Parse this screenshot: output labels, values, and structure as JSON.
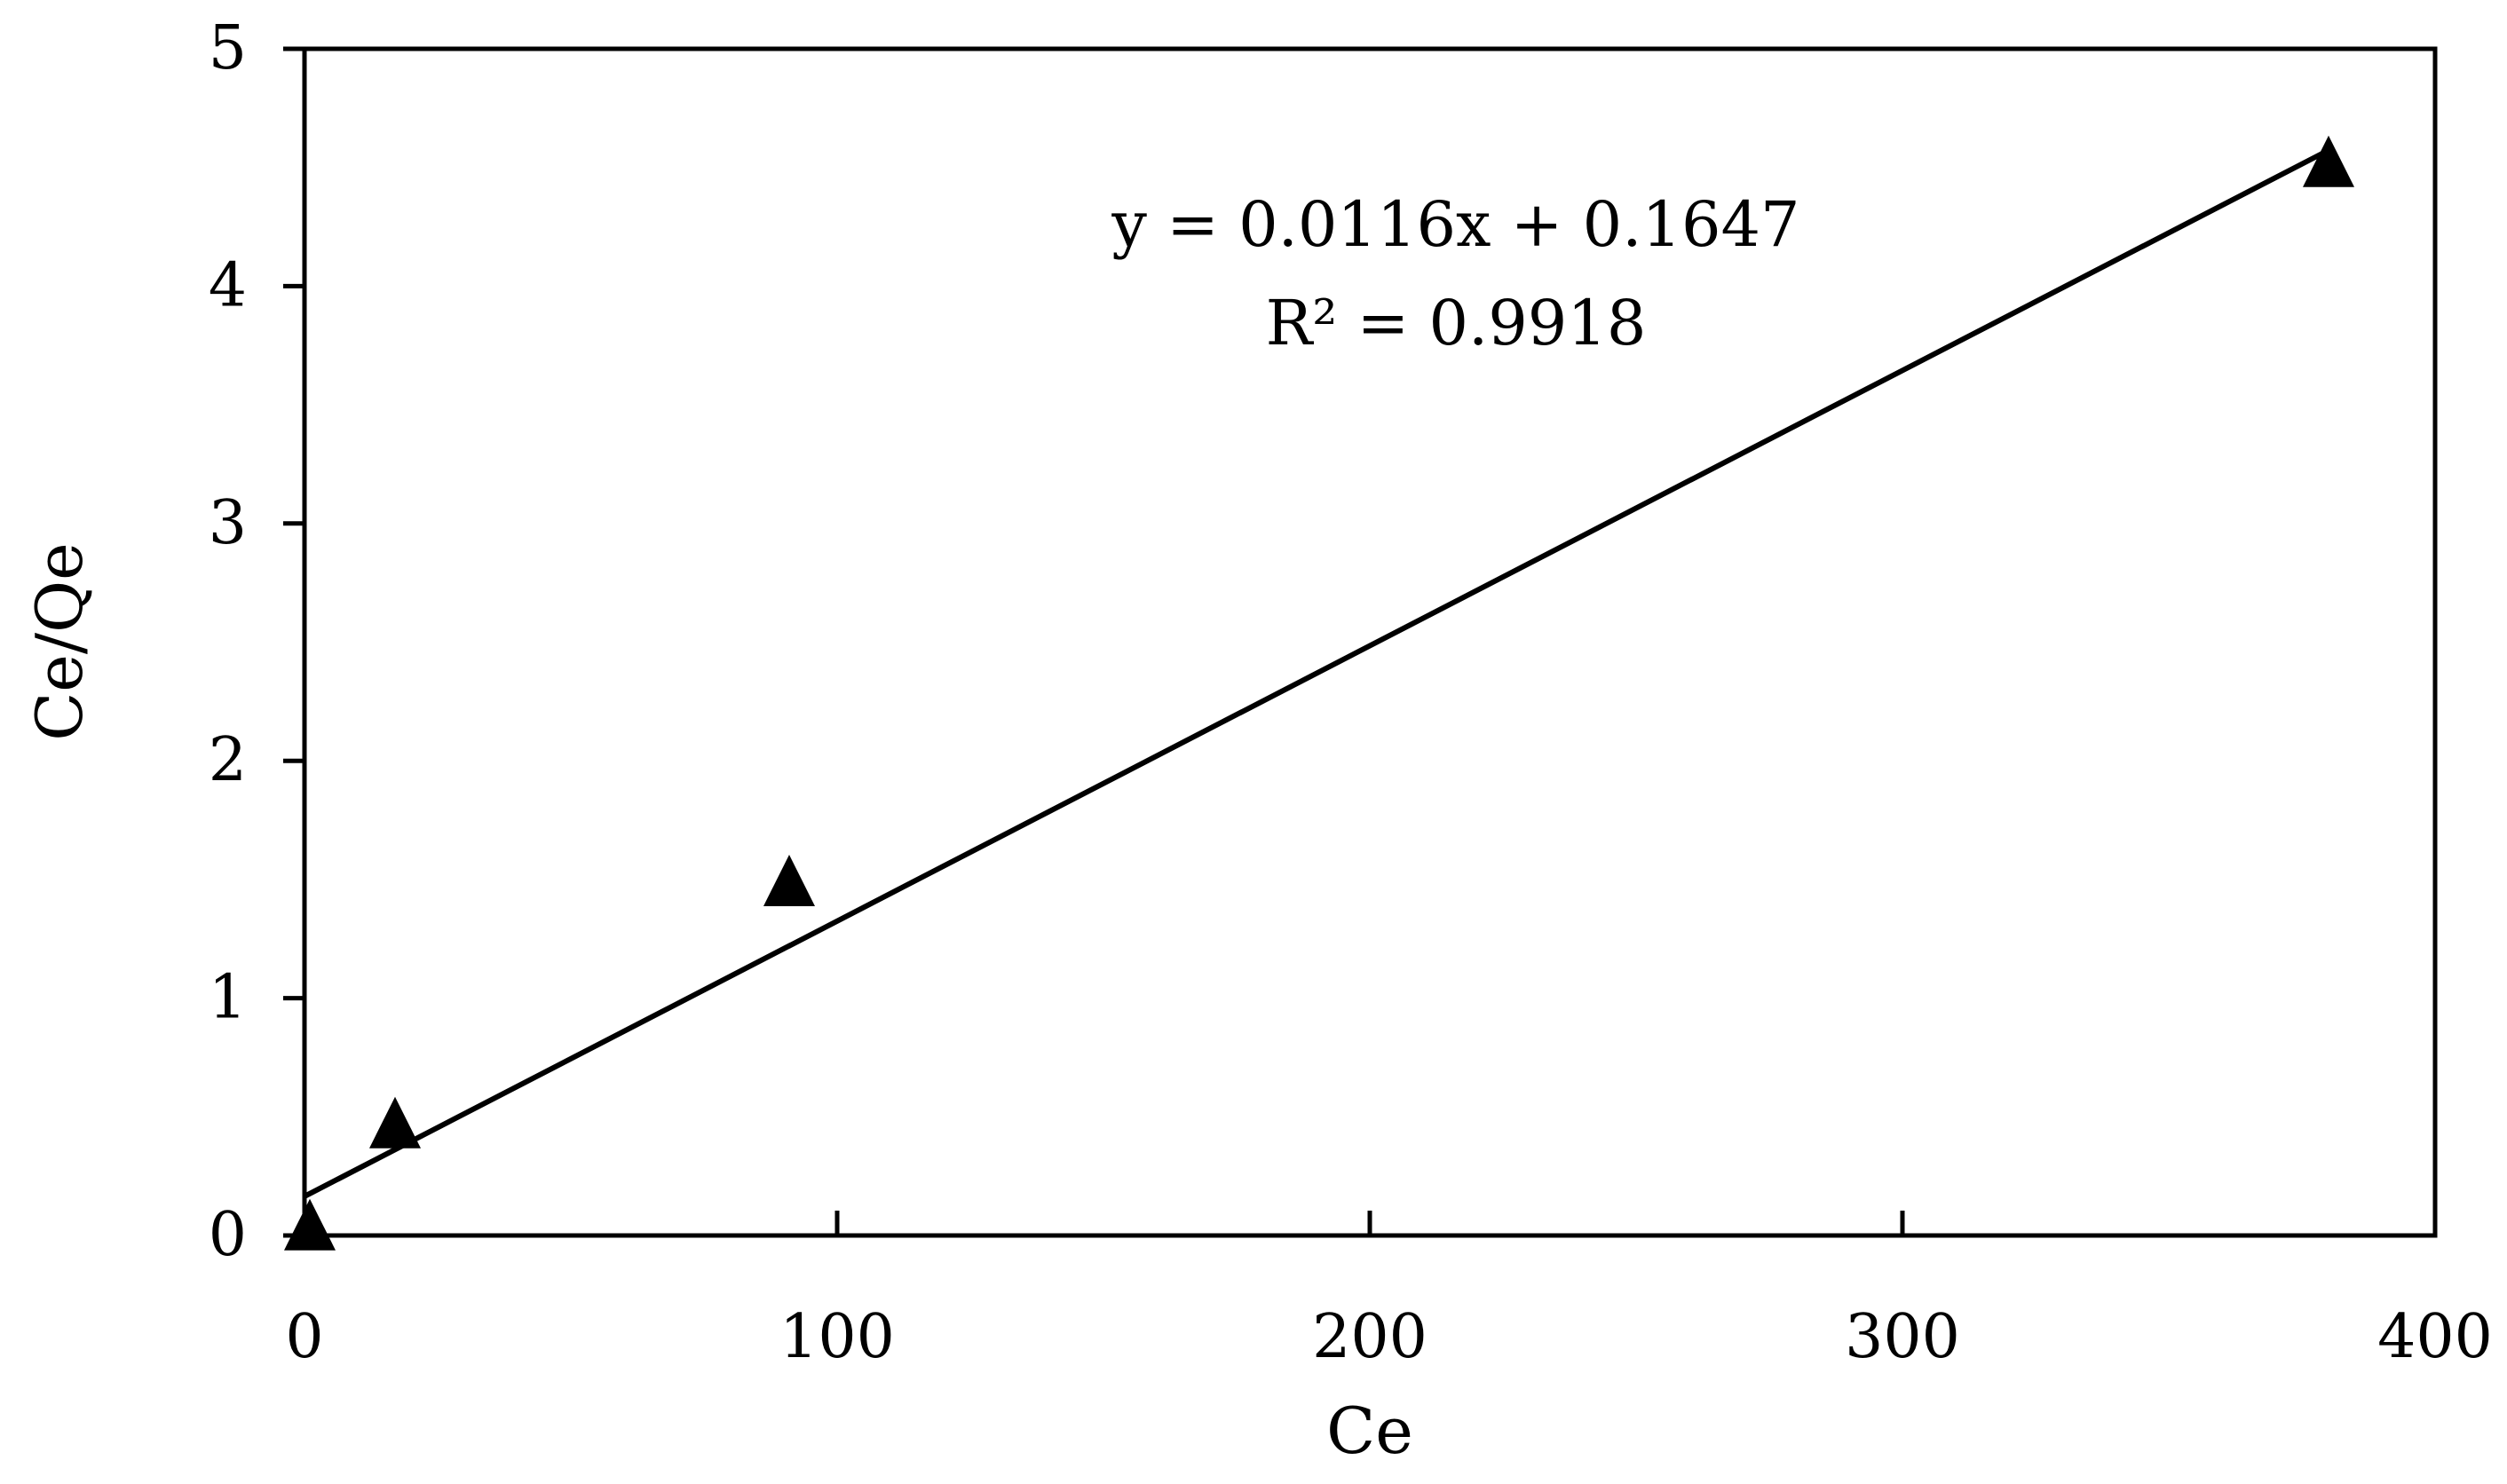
{
  "chart_data": {
    "type": "scatter",
    "title": "",
    "xlabel": "Ce",
    "ylabel": "Ce/Qe",
    "xlim": [
      0,
      400
    ],
    "ylim": [
      0,
      5
    ],
    "xticks": [
      0,
      100,
      200,
      300,
      400
    ],
    "yticks": [
      0,
      1,
      2,
      3,
      4,
      5
    ],
    "xtick_labels": [
      "0",
      "100",
      "200",
      "300",
      "400"
    ],
    "ytick_labels": [
      "0",
      "1",
      "2",
      "3",
      "4",
      "5"
    ],
    "grid": false,
    "legend": "none",
    "marker": "triangle",
    "marker_color": "#000000",
    "series": [
      {
        "points": [
          {
            "x": 1,
            "y": 0.02
          },
          {
            "x": 17,
            "y": 0.45
          },
          {
            "x": 91,
            "y": 1.47
          },
          {
            "x": 380,
            "y": 4.5
          }
        ]
      }
    ],
    "trendline": {
      "type": "linear",
      "slope": 0.0116,
      "intercept": 0.1647,
      "x_range": [
        0,
        380
      ],
      "color": "#000000"
    },
    "annotations": {
      "equation": "y = 0.0116x + 0.1647",
      "r_squared": "R² = 0.9918"
    }
  }
}
